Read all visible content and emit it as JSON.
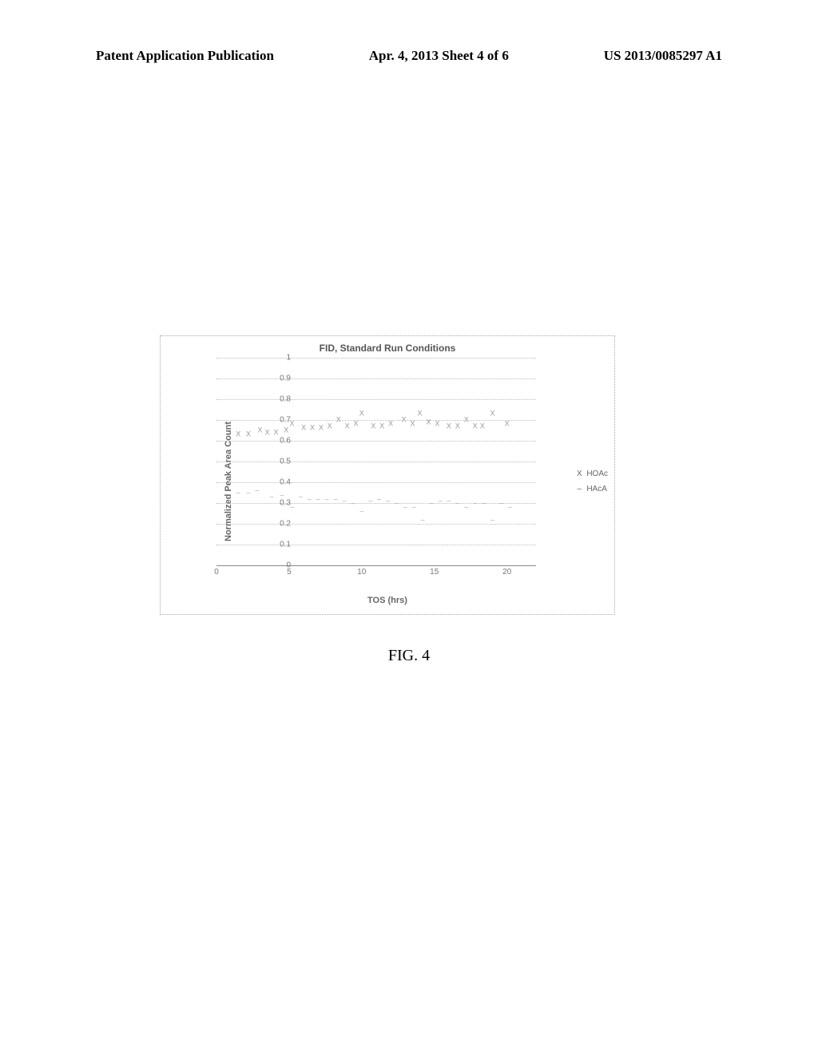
{
  "header": {
    "left": "Patent Application Publication",
    "center": "Apr. 4, 2013   Sheet 4 of 6",
    "right": "US 2013/0085297 A1"
  },
  "chart": {
    "title": "FID, Standard Run Conditions",
    "ylabel": "Normalized Peak Area Count",
    "xlabel": "TOS (hrs)",
    "xlim": [
      0,
      22
    ],
    "ylim": [
      0,
      1
    ],
    "ytick_step": 0.1,
    "xtick_step": 5,
    "grid_color": "#bbbbbb",
    "series": [
      {
        "name": "HOAc",
        "marker": "X",
        "color": "#999999",
        "data": [
          {
            "x": 1.5,
            "y": 0.63
          },
          {
            "x": 2.2,
            "y": 0.63
          },
          {
            "x": 3.0,
            "y": 0.65
          },
          {
            "x": 3.5,
            "y": 0.64
          },
          {
            "x": 4.1,
            "y": 0.64
          },
          {
            "x": 4.8,
            "y": 0.65
          },
          {
            "x": 5.2,
            "y": 0.68
          },
          {
            "x": 6.0,
            "y": 0.66
          },
          {
            "x": 6.6,
            "y": 0.66
          },
          {
            "x": 7.2,
            "y": 0.66
          },
          {
            "x": 7.8,
            "y": 0.67
          },
          {
            "x": 8.4,
            "y": 0.7
          },
          {
            "x": 9.0,
            "y": 0.67
          },
          {
            "x": 9.6,
            "y": 0.68
          },
          {
            "x": 10.0,
            "y": 0.73
          },
          {
            "x": 10.8,
            "y": 0.67
          },
          {
            "x": 11.4,
            "y": 0.67
          },
          {
            "x": 12.0,
            "y": 0.68
          },
          {
            "x": 12.9,
            "y": 0.7
          },
          {
            "x": 13.5,
            "y": 0.68
          },
          {
            "x": 14.0,
            "y": 0.73
          },
          {
            "x": 14.6,
            "y": 0.69
          },
          {
            "x": 15.2,
            "y": 0.68
          },
          {
            "x": 16.0,
            "y": 0.67
          },
          {
            "x": 16.6,
            "y": 0.67
          },
          {
            "x": 17.2,
            "y": 0.7
          },
          {
            "x": 17.8,
            "y": 0.67
          },
          {
            "x": 18.3,
            "y": 0.67
          },
          {
            "x": 19.0,
            "y": 0.73
          },
          {
            "x": 20.0,
            "y": 0.68
          }
        ]
      },
      {
        "name": "HAcA",
        "marker": "–",
        "color": "#aaaaaa",
        "data": [
          {
            "x": 1.5,
            "y": 0.35
          },
          {
            "x": 2.2,
            "y": 0.35
          },
          {
            "x": 2.8,
            "y": 0.36
          },
          {
            "x": 3.8,
            "y": 0.33
          },
          {
            "x": 4.5,
            "y": 0.34
          },
          {
            "x": 5.2,
            "y": 0.28
          },
          {
            "x": 5.8,
            "y": 0.33
          },
          {
            "x": 6.4,
            "y": 0.32
          },
          {
            "x": 7.0,
            "y": 0.32
          },
          {
            "x": 7.6,
            "y": 0.32
          },
          {
            "x": 8.2,
            "y": 0.32
          },
          {
            "x": 8.8,
            "y": 0.31
          },
          {
            "x": 9.4,
            "y": 0.3
          },
          {
            "x": 10.0,
            "y": 0.26
          },
          {
            "x": 10.6,
            "y": 0.31
          },
          {
            "x": 11.2,
            "y": 0.32
          },
          {
            "x": 11.8,
            "y": 0.31
          },
          {
            "x": 12.4,
            "y": 0.3
          },
          {
            "x": 13.0,
            "y": 0.28
          },
          {
            "x": 13.6,
            "y": 0.28
          },
          {
            "x": 14.2,
            "y": 0.22
          },
          {
            "x": 14.8,
            "y": 0.3
          },
          {
            "x": 15.4,
            "y": 0.31
          },
          {
            "x": 16.0,
            "y": 0.31
          },
          {
            "x": 16.6,
            "y": 0.3
          },
          {
            "x": 17.2,
            "y": 0.28
          },
          {
            "x": 17.8,
            "y": 0.3
          },
          {
            "x": 18.4,
            "y": 0.3
          },
          {
            "x": 19.0,
            "y": 0.22
          },
          {
            "x": 19.6,
            "y": 0.3
          },
          {
            "x": 20.2,
            "y": 0.28
          }
        ]
      }
    ]
  },
  "figure_caption": "FIG. 4"
}
